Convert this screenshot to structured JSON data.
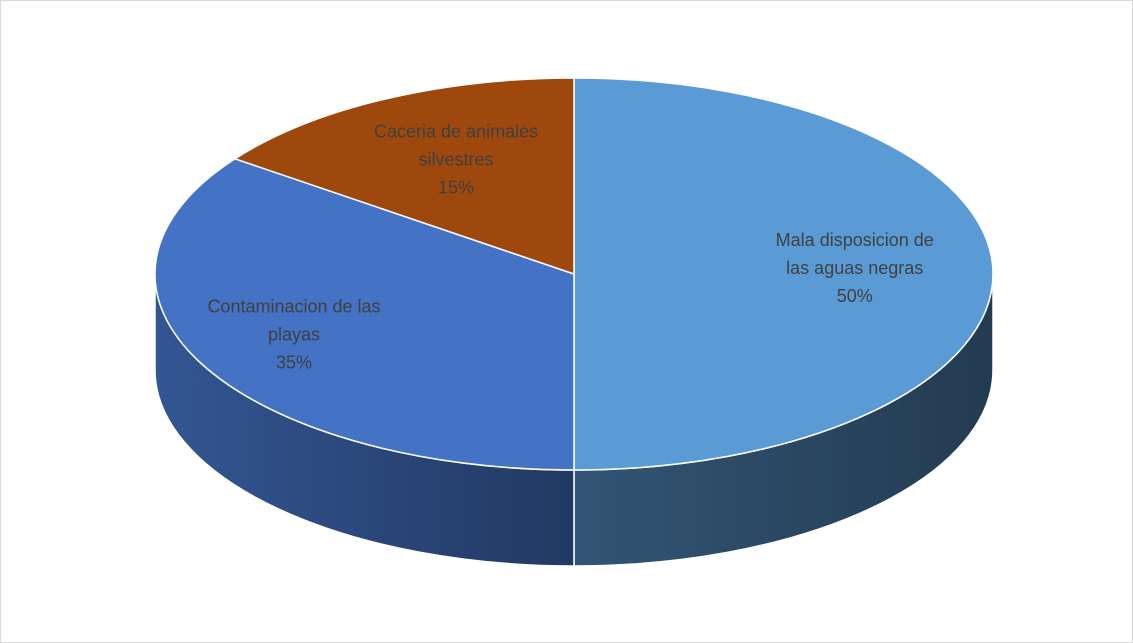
{
  "chart_data": {
    "type": "pie",
    "categories": [
      "Mala disposicion de las aguas negras",
      "Contaminacion de las playas",
      "Caceria de animales silvestres"
    ],
    "values": [
      50,
      35,
      15
    ],
    "value_labels": [
      "50%",
      "35%",
      "15%"
    ],
    "colors": [
      "#5b9bd5",
      "#4472c4",
      "#9e480e"
    ]
  }
}
